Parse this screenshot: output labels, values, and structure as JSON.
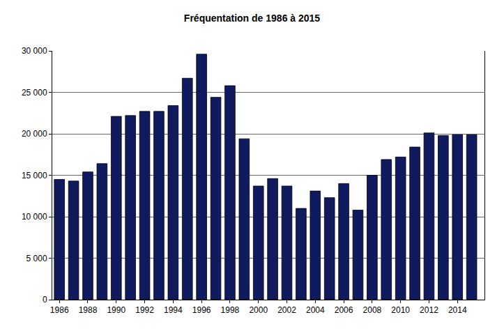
{
  "chart_data": {
    "type": "bar",
    "title": "Fréquentation de 1986 à 2015",
    "x": [
      1986,
      1987,
      1988,
      1989,
      1990,
      1991,
      1992,
      1993,
      1994,
      1995,
      1996,
      1997,
      1998,
      1999,
      2000,
      2001,
      2002,
      2003,
      2004,
      2005,
      2006,
      2007,
      2008,
      2009,
      2010,
      2011,
      2012,
      2013,
      2014,
      2015
    ],
    "values": [
      14500,
      14300,
      15400,
      16400,
      22100,
      22200,
      22700,
      22700,
      23400,
      26700,
      29600,
      24400,
      25800,
      19400,
      13700,
      14600,
      13700,
      11000,
      13100,
      12300,
      14000,
      10800,
      15000,
      16900,
      17200,
      18400,
      20100,
      19800,
      19900,
      19900
    ],
    "color": "#0f1b5e",
    "xlim": [
      1985.5,
      2015.9
    ],
    "xticks": [
      1986,
      1988,
      1990,
      1992,
      1994,
      1996,
      1998,
      2000,
      2002,
      2004,
      2006,
      2008,
      2010,
      2012,
      2014
    ],
    "ylim": [
      0,
      30000
    ],
    "yticks": [
      0,
      {
        "value": 5000,
        "label": "5 000"
      },
      {
        "value": 10000,
        "label": "10 000"
      },
      {
        "value": 15000,
        "label": "15 000"
      },
      {
        "value": 20000,
        "label": "20 000"
      },
      {
        "value": 25000,
        "label": "25 000"
      },
      {
        "value": 30000,
        "label": "30 000"
      }
    ],
    "grid": true
  }
}
